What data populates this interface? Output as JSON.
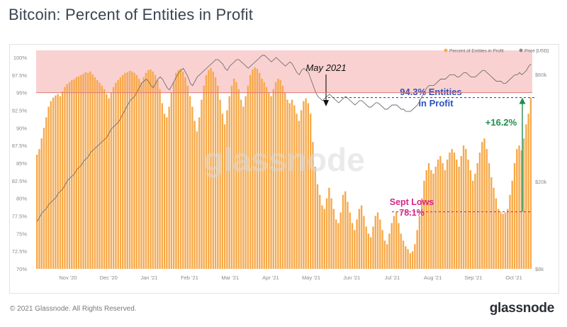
{
  "title": "Bitcoin: Percent of Entities in Profit",
  "footer": {
    "copyright": "© 2021 Glassnode. All Rights Reserved.",
    "brand": "glassnode"
  },
  "watermark": "glassnode",
  "colors": {
    "bars": "#f7a94a",
    "price": "#777777",
    "band": "#f9c9c9",
    "band_line": "#e07878",
    "blue": "#2a52be",
    "green": "#1e8f4e",
    "magenta": "#d4288a",
    "text": "#3a4350"
  },
  "chart_data": {
    "type": "bar",
    "x_axis": {
      "ticks": [
        "Nov '20",
        "Dec '20",
        "Jan '21",
        "Feb '21",
        "Mar '21",
        "Apr '21",
        "May '21",
        "Jun '21",
        "Jul '21",
        "Aug '21",
        "Sep '21",
        "Oct '21"
      ]
    },
    "y_left": {
      "min": 70,
      "max": 101,
      "ticks": [
        "70%",
        "72.5%",
        "75%",
        "77.5%",
        "80%",
        "82.5%",
        "85%",
        "87.5%",
        "90%",
        "92.5%",
        "95%",
        "97.5%",
        "100%"
      ]
    },
    "y_right": {
      "ticks": [
        "$8k",
        "$20k",
        "$60k"
      ]
    },
    "legend": {
      "bars_label": "Percent of Entities in Profit",
      "price_label": "Price [USD]",
      "position": "top-right"
    },
    "highlight_band": {
      "from": 95,
      "to": 101
    },
    "entities_in_profit_pct": [
      86.2,
      87.0,
      88.5,
      90.0,
      91.5,
      93.0,
      93.8,
      94.3,
      94.6,
      94.8,
      94.5,
      95.2,
      95.8,
      96.2,
      96.5,
      96.8,
      96.9,
      97.2,
      97.3,
      97.5,
      97.7,
      97.9,
      97.8,
      98.0,
      97.6,
      97.2,
      96.8,
      96.4,
      96.0,
      95.5,
      94.8,
      94.2,
      95.0,
      95.8,
      96.4,
      96.8,
      97.2,
      97.5,
      97.8,
      97.9,
      98.1,
      98.0,
      97.8,
      97.5,
      97.0,
      96.5,
      97.2,
      97.8,
      98.2,
      98.3,
      98.0,
      97.5,
      96.8,
      95.5,
      93.5,
      92.0,
      91.5,
      93.0,
      95.0,
      96.5,
      97.8,
      98.2,
      98.4,
      98.0,
      97.2,
      96.0,
      94.5,
      93.0,
      91.0,
      89.5,
      91.5,
      94.0,
      96.0,
      97.5,
      98.2,
      98.5,
      98.0,
      97.2,
      96.0,
      94.0,
      92.0,
      90.5,
      92.5,
      94.5,
      96.0,
      97.0,
      96.5,
      95.5,
      94.0,
      93.0,
      94.5,
      96.0,
      97.5,
      98.3,
      98.6,
      98.4,
      97.8,
      97.0,
      96.5,
      95.8,
      95.0,
      94.5,
      95.5,
      96.5,
      97.0,
      96.8,
      96.0,
      95.0,
      94.0,
      93.5,
      94.0,
      93.2,
      92.0,
      91.0,
      92.5,
      93.8,
      94.2,
      93.5,
      92.0,
      88.0,
      84.5,
      82.0,
      80.5,
      79.0,
      78.5,
      80.0,
      81.5,
      80.0,
      78.5,
      77.0,
      76.5,
      78.0,
      80.5,
      81.0,
      79.5,
      78.0,
      76.5,
      75.5,
      77.0,
      78.5,
      79.0,
      77.5,
      76.0,
      75.0,
      74.5,
      76.0,
      77.5,
      78.0,
      77.0,
      75.5,
      74.0,
      73.5,
      75.0,
      76.5,
      77.5,
      78.1,
      76.5,
      75.0,
      74.0,
      73.2,
      72.8,
      72.2,
      72.5,
      73.5,
      75.5,
      77.5,
      80.0,
      82.5,
      84.0,
      85.0,
      84.0,
      83.5,
      84.5,
      85.5,
      86.0,
      85.0,
      84.0,
      85.5,
      86.5,
      87.0,
      86.5,
      85.5,
      84.5,
      86.0,
      87.5,
      87.0,
      85.5,
      84.0,
      82.5,
      83.5,
      85.0,
      86.5,
      88.0,
      88.5,
      87.0,
      85.0,
      83.0,
      81.5,
      80.0,
      78.5,
      78.0,
      77.8,
      78.0,
      78.5,
      80.5,
      82.5,
      85.0,
      87.0,
      87.5,
      86.8,
      88.5,
      90.5,
      92.0,
      94.3
    ],
    "price_usd_relative": [
      0.22,
      0.24,
      0.26,
      0.27,
      0.28,
      0.3,
      0.31,
      0.32,
      0.33,
      0.35,
      0.36,
      0.37,
      0.39,
      0.41,
      0.42,
      0.43,
      0.44,
      0.46,
      0.47,
      0.48,
      0.5,
      0.51,
      0.52,
      0.54,
      0.55,
      0.56,
      0.57,
      0.58,
      0.59,
      0.6,
      0.61,
      0.63,
      0.65,
      0.66,
      0.67,
      0.68,
      0.7,
      0.72,
      0.74,
      0.76,
      0.78,
      0.79,
      0.8,
      0.82,
      0.84,
      0.86,
      0.87,
      0.88,
      0.87,
      0.85,
      0.84,
      0.86,
      0.88,
      0.89,
      0.88,
      0.86,
      0.84,
      0.83,
      0.85,
      0.87,
      0.89,
      0.91,
      0.92,
      0.93,
      0.91,
      0.89,
      0.86,
      0.85,
      0.87,
      0.89,
      0.9,
      0.91,
      0.92,
      0.93,
      0.94,
      0.95,
      0.96,
      0.97,
      0.97,
      0.96,
      0.95,
      0.93,
      0.92,
      0.94,
      0.95,
      0.96,
      0.97,
      0.97,
      0.96,
      0.95,
      0.94,
      0.93,
      0.94,
      0.95,
      0.96,
      0.97,
      0.98,
      0.99,
      0.99,
      0.98,
      0.97,
      0.96,
      0.97,
      0.98,
      0.97,
      0.96,
      0.95,
      0.94,
      0.95,
      0.96,
      0.95,
      0.93,
      0.91,
      0.9,
      0.92,
      0.93,
      0.92,
      0.91,
      0.88,
      0.85,
      0.82,
      0.8,
      0.79,
      0.78,
      0.79,
      0.8,
      0.81,
      0.8,
      0.79,
      0.78,
      0.77,
      0.78,
      0.79,
      0.8,
      0.79,
      0.78,
      0.77,
      0.76,
      0.77,
      0.78,
      0.78,
      0.77,
      0.76,
      0.75,
      0.75,
      0.76,
      0.77,
      0.77,
      0.76,
      0.75,
      0.74,
      0.74,
      0.75,
      0.76,
      0.76,
      0.76,
      0.75,
      0.74,
      0.74,
      0.73,
      0.73,
      0.73,
      0.74,
      0.75,
      0.76,
      0.78,
      0.8,
      0.82,
      0.84,
      0.85,
      0.85,
      0.85,
      0.86,
      0.87,
      0.88,
      0.88,
      0.88,
      0.89,
      0.9,
      0.9,
      0.9,
      0.89,
      0.89,
      0.9,
      0.91,
      0.91,
      0.9,
      0.89,
      0.89,
      0.89,
      0.9,
      0.91,
      0.92,
      0.92,
      0.91,
      0.9,
      0.89,
      0.88,
      0.87,
      0.87,
      0.87,
      0.86,
      0.86,
      0.87,
      0.88,
      0.89,
      0.9,
      0.9,
      0.91,
      0.9,
      0.91,
      0.92,
      0.94,
      0.95
    ],
    "annotations": [
      {
        "id": "may",
        "text": "May 2021"
      },
      {
        "id": "entities_l1",
        "text": "94.3% Entities"
      },
      {
        "id": "entities_l2",
        "text": "in Profit"
      },
      {
        "id": "change",
        "text": "+16.2%"
      },
      {
        "id": "sept_l1",
        "text": "Sept Lows"
      },
      {
        "id": "sept_l2",
        "text": "78.1%"
      }
    ]
  }
}
